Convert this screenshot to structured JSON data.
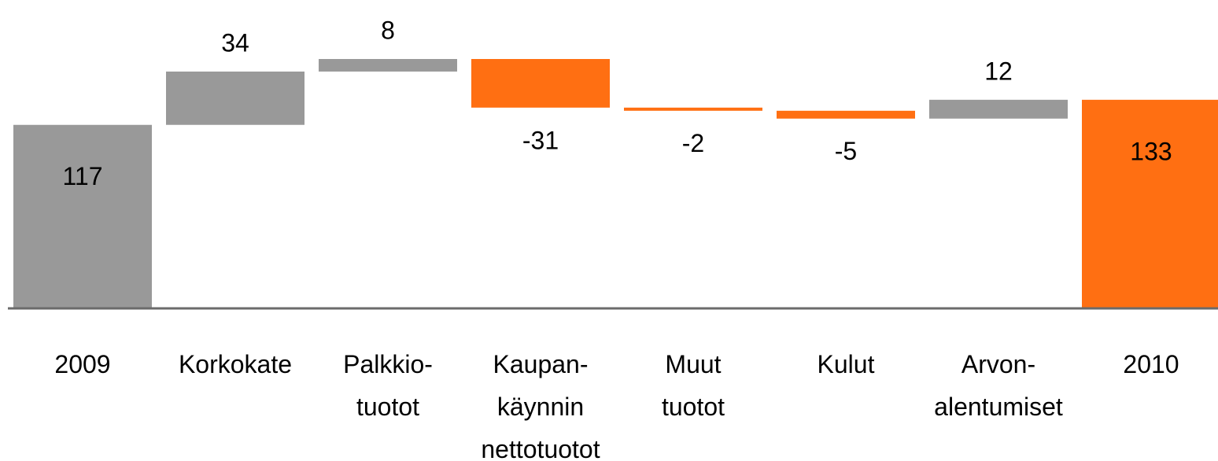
{
  "chart_data": {
    "type": "waterfall",
    "categories": [
      [
        "2009"
      ],
      [
        "Korkokate"
      ],
      [
        "Palkkio-",
        "tuotot"
      ],
      [
        "Kaupan-",
        "käynnin",
        "nettotuotot"
      ],
      [
        "Muut",
        "tuotot"
      ],
      [
        "Kulut"
      ],
      [
        "Arvon-",
        "alentumiset"
      ],
      [
        "2010"
      ]
    ],
    "values": [
      117,
      34,
      8,
      -31,
      -2,
      -5,
      12,
      133
    ],
    "colors": [
      "#999999",
      "#999999",
      "#999999",
      "#ff6f12",
      "#ff6f12",
      "#ff6f12",
      "#999999",
      "#ff6f12"
    ]
  }
}
